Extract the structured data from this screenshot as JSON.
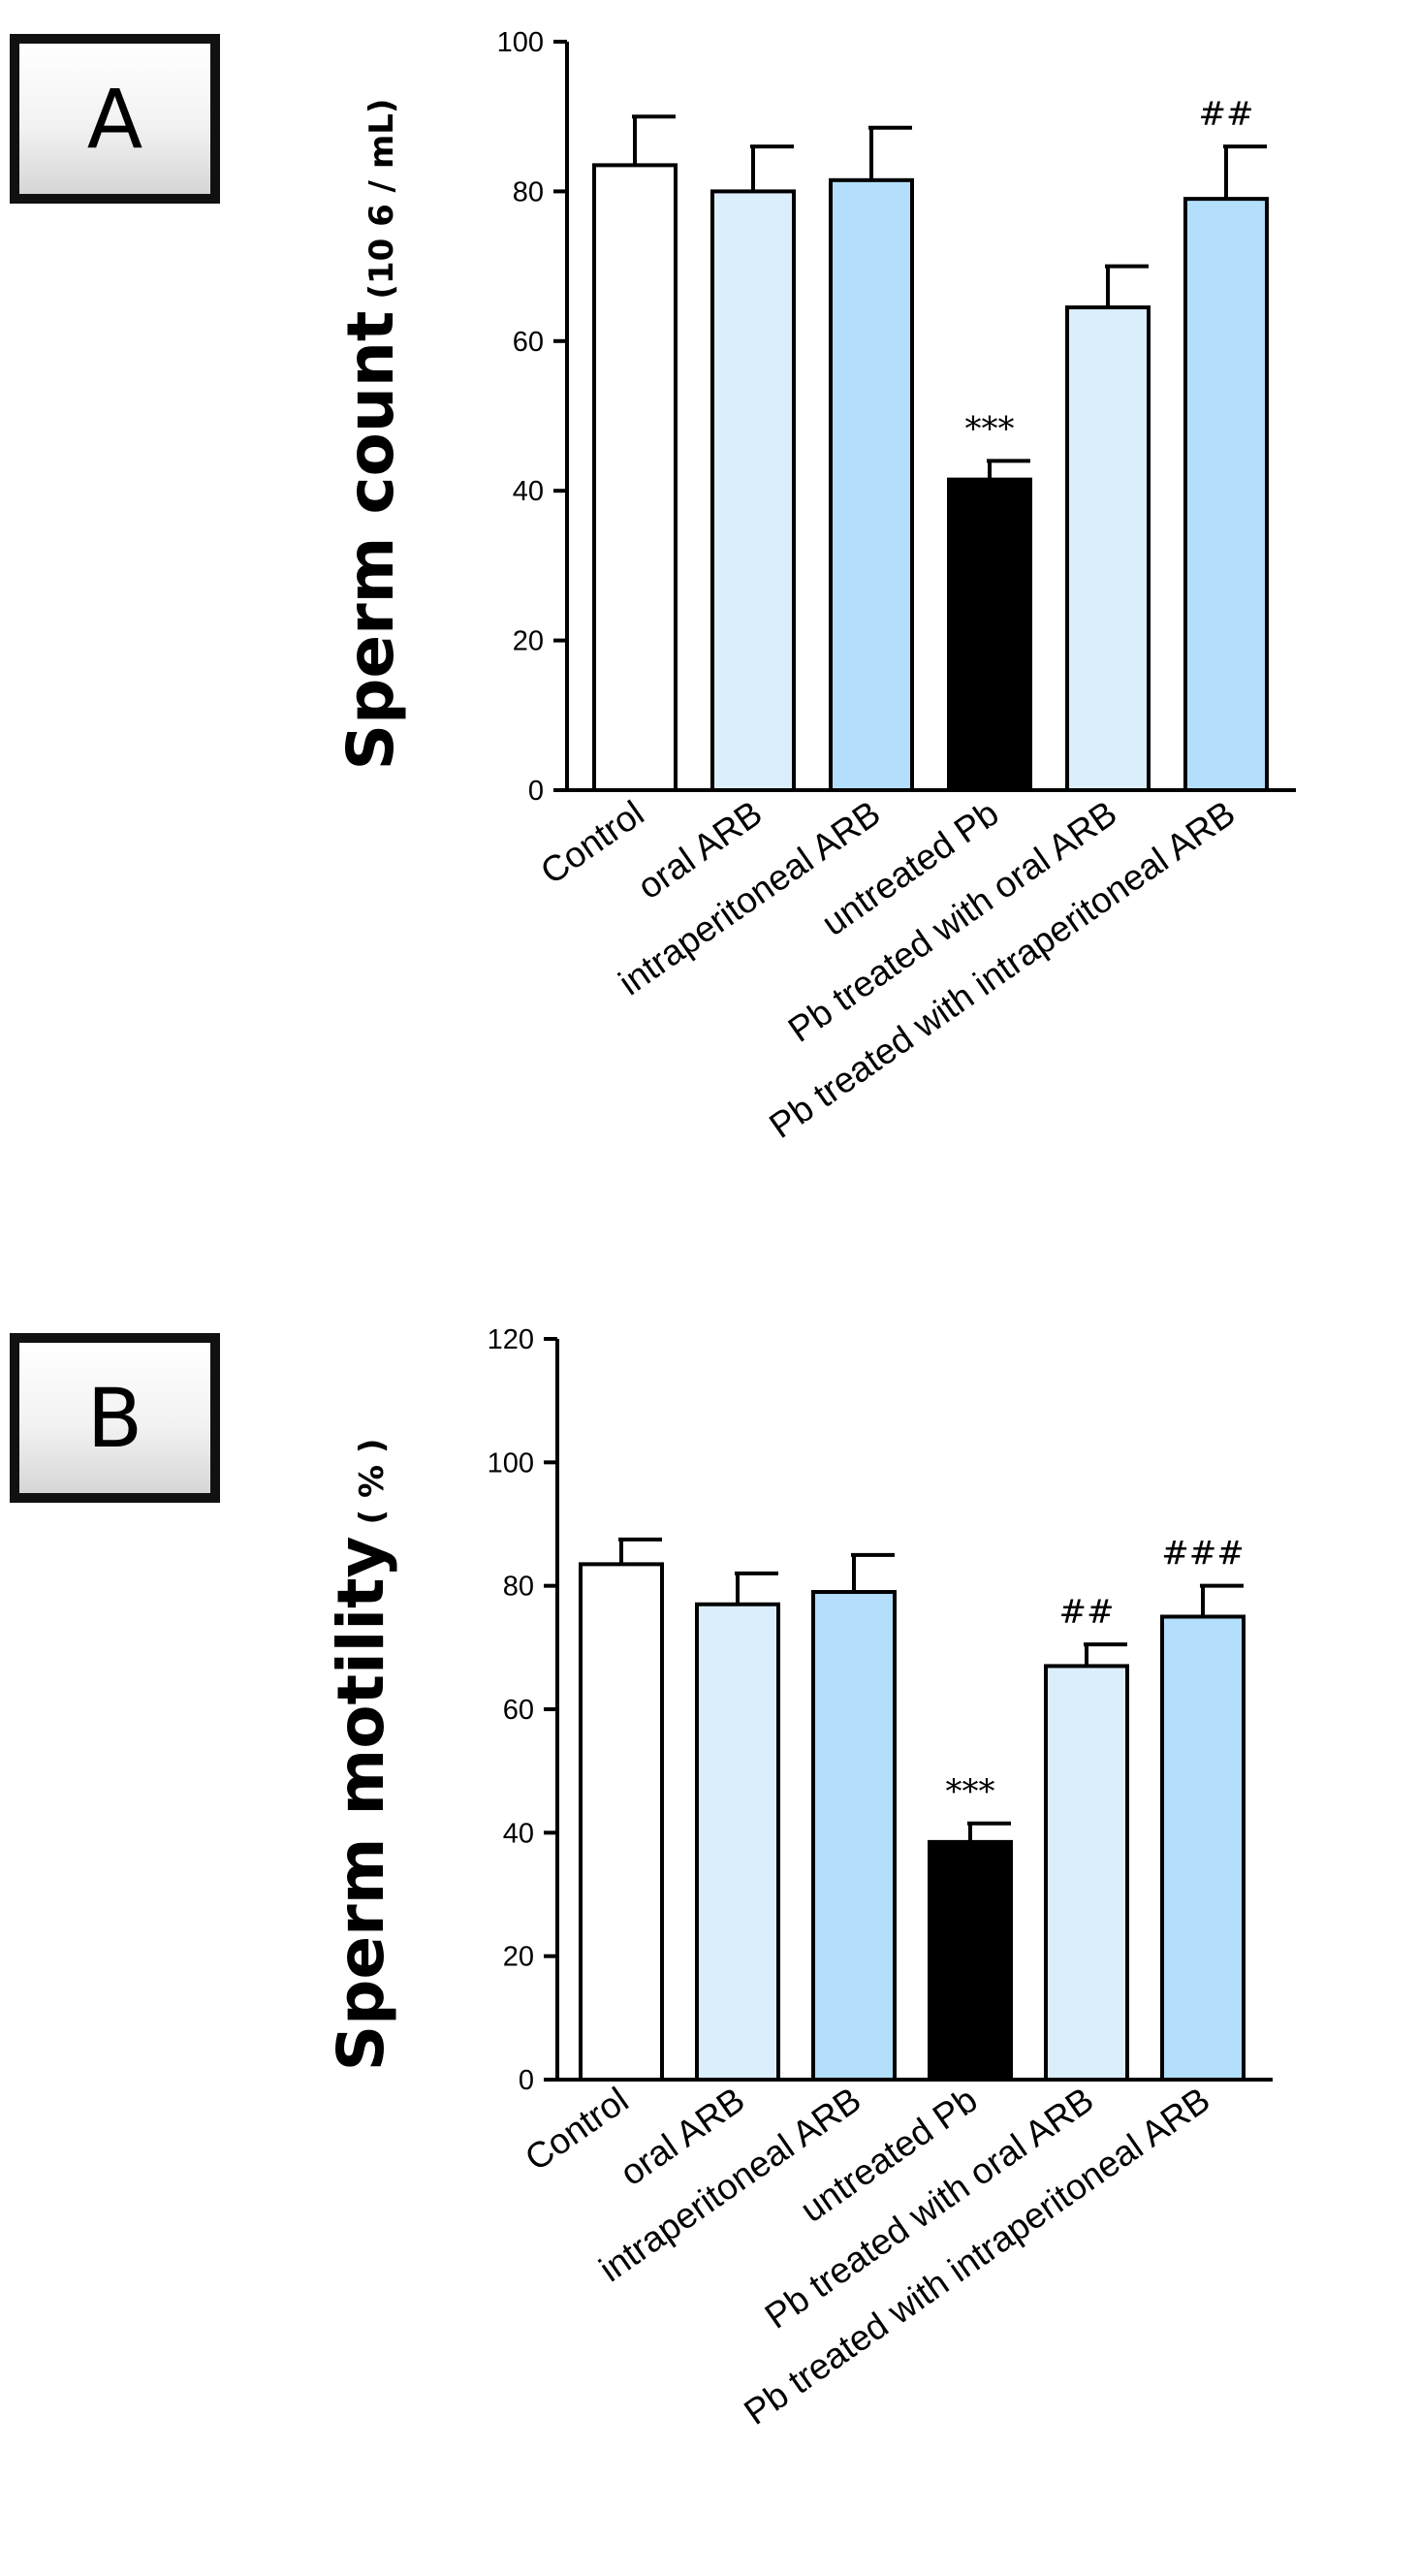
{
  "panels": {
    "a_label": "A",
    "b_label": "B"
  },
  "colors": {
    "white": "#ffffff",
    "pale_blue": "#daeefc",
    "light_blue": "#b3dffc",
    "black": "#000000"
  },
  "chart_data": [
    {
      "type": "bar",
      "panel": "A",
      "title": "",
      "ylabel": "Sperm count",
      "ylabel_unit": "(10 6 / mL)",
      "ylim": [
        0,
        100
      ],
      "yticks": [
        0,
        20,
        40,
        60,
        80,
        100
      ],
      "categories": [
        "Control",
        "oral ARB",
        "intraperitoneal ARB",
        "untreated Pb",
        "Pb treated with oral ARB",
        "Pb treated with intraperitoneal ARB"
      ],
      "values": [
        83.5,
        80,
        81.5,
        41.5,
        64.5,
        79
      ],
      "errors": [
        6.5,
        6,
        7,
        2.5,
        5.5,
        7
      ],
      "bar_colors": [
        "#ffffff",
        "#daeefc",
        "#b3dffc",
        "#000000",
        "#daeefc",
        "#b3dffc"
      ],
      "annotations": [
        "",
        "",
        "",
        "***",
        "",
        "##"
      ]
    },
    {
      "type": "bar",
      "panel": "B",
      "title": "",
      "ylabel": "Sperm motility",
      "ylabel_unit": "( % )",
      "ylim": [
        0,
        120
      ],
      "yticks": [
        0,
        20,
        40,
        60,
        80,
        100,
        120
      ],
      "categories": [
        "Control",
        "oral ARB",
        "intraperitoneal ARB",
        "untreated Pb",
        "Pb treated with oral ARB",
        "Pb treated with intraperitoneal ARB"
      ],
      "values": [
        83.5,
        77,
        79,
        38.5,
        67,
        75
      ],
      "errors": [
        4,
        5,
        6,
        3,
        3.5,
        5
      ],
      "bar_colors": [
        "#ffffff",
        "#daeefc",
        "#b3dffc",
        "#000000",
        "#daeefc",
        "#b3dffc"
      ],
      "annotations": [
        "",
        "",
        "",
        "***",
        "##",
        "###"
      ]
    }
  ]
}
